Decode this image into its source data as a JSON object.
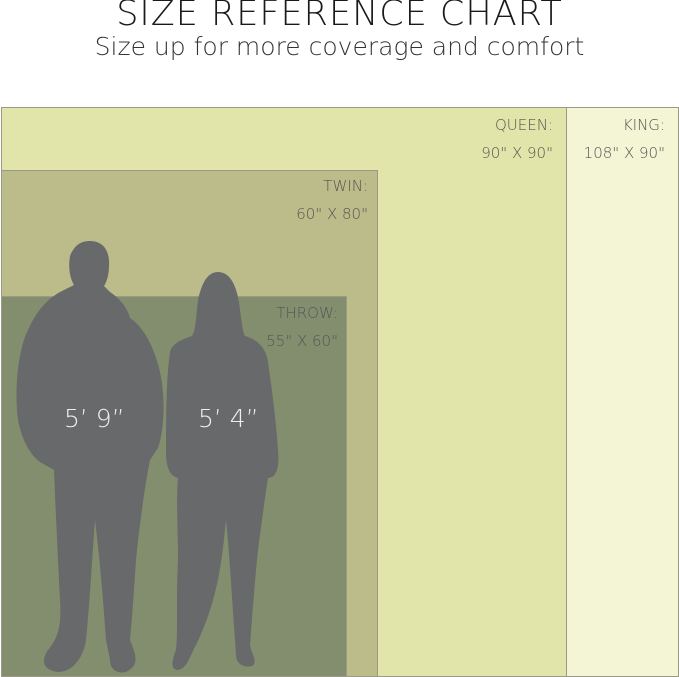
{
  "header": {
    "title": "SIZE REFERENCE CHART",
    "subtitle": "Size up for more coverage and comfort"
  },
  "sizes": [
    {
      "name": "QUEEN:",
      "dims": "90\" X 90\"",
      "color": "#e1e5a9"
    },
    {
      "name": "KING:",
      "dims": "108\" X 90\"",
      "color": "#f3f5d4"
    },
    {
      "name": "TWIN:",
      "dims": "60\" X 80\"",
      "color": "#bcbb8a"
    },
    {
      "name": "THROW:",
      "dims": "55\" X 60\"",
      "color": "#838e6f"
    }
  ],
  "figures": [
    {
      "height": "5’ 9”"
    },
    {
      "height": "5’ 4”"
    }
  ],
  "silhouette_color": "#68696b"
}
